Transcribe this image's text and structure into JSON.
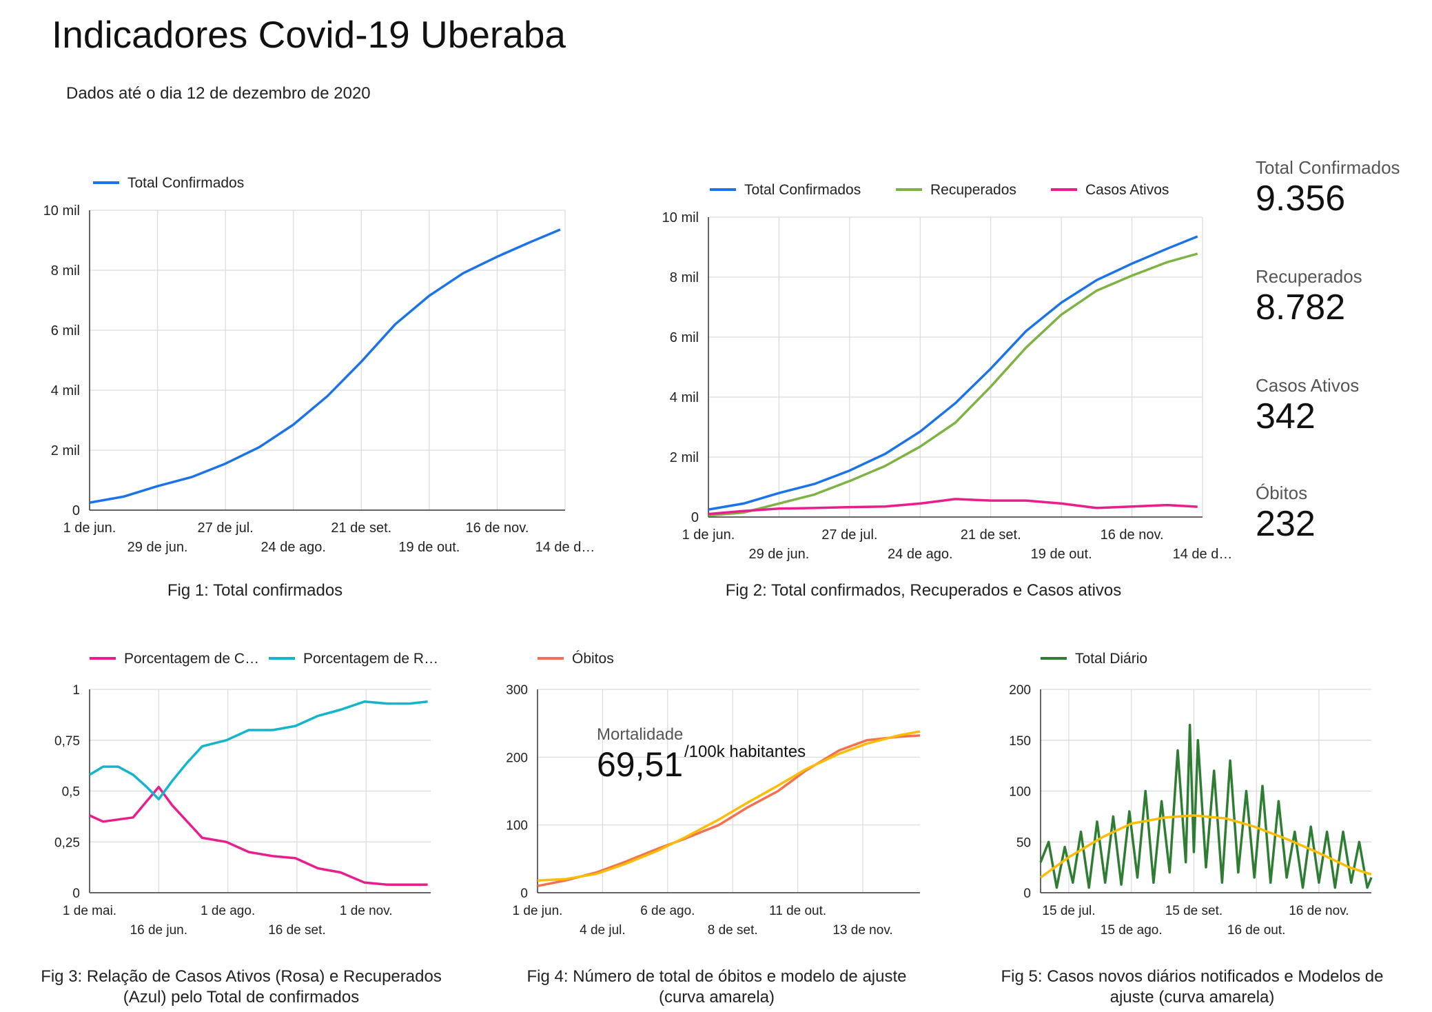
{
  "page": {
    "title": "Indicadores Covid-19 Uberaba",
    "subtitle": "Dados até o dia 12 de dezembro de 2020"
  },
  "kpis": [
    {
      "label": "Total Confirmados",
      "value": "9.356"
    },
    {
      "label": "Recuperados",
      "value": "8.782"
    },
    {
      "label": "Casos Ativos",
      "value": "342"
    },
    {
      "label": "Óbitos",
      "value": "232"
    }
  ],
  "captions": {
    "fig1": "Fig 1: Total confirmados",
    "fig2": "Fig 2:  Total confirmados, Recuperados e Casos ativos",
    "fig3": "Fig 3:  Relação de Casos Ativos (Rosa) e Recuperados (Azul)  pelo Total de confirmados",
    "fig4": "Fig 4:  Número de total de óbitos e modelo de ajuste (curva amarela)",
    "fig5": "Fig 5:  Casos novos diários notificados e Modelos de ajuste (curva amarela)"
  },
  "annotation": {
    "label": "Mortalidade",
    "value": "69,51",
    "unit": "/100k habitantes"
  },
  "colors": {
    "confirmados": "#1a73e8",
    "recuperados": "#7cb342",
    "ativos": "#e91e8c",
    "pct_ativos": "#e91e8c",
    "pct_recuperados": "#12b5cb",
    "obitos": "#f4704e",
    "ajuste": "#fbbc04",
    "diario": "#2e7d32",
    "grid": "#cccccc",
    "axis": "#333333"
  },
  "chart_data": [
    {
      "id": "fig1",
      "type": "line",
      "x_start": "2020-06-01",
      "x_end": "2020-12-12",
      "xlim": [
        "2020-06-01",
        "2020-12-14"
      ],
      "ylim": [
        0,
        10000
      ],
      "yticks": [
        0,
        2000,
        4000,
        6000,
        8000,
        10000
      ],
      "ytick_labels": [
        "0",
        "2 mil",
        "4 mil",
        "6 mil",
        "8 mil",
        "10 mil"
      ],
      "xticks": [
        "2020-06-01",
        "2020-06-29",
        "2020-07-27",
        "2020-08-24",
        "2020-09-21",
        "2020-10-19",
        "2020-11-16",
        "2020-12-14"
      ],
      "xtick_labels": [
        "1 de jun.",
        "29 de jun.",
        "27 de jul.",
        "24 de ago.",
        "21 de set.",
        "19 de out.",
        "16 de nov.",
        "14 de d…"
      ],
      "grid": true,
      "legend": "top-left",
      "series": [
        {
          "name": "Total Confirmados",
          "color": "#1a73e8",
          "x": [
            "2020-06-01",
            "2020-06-15",
            "2020-06-29",
            "2020-07-13",
            "2020-07-27",
            "2020-08-10",
            "2020-08-24",
            "2020-09-07",
            "2020-09-21",
            "2020-10-05",
            "2020-10-19",
            "2020-11-02",
            "2020-11-16",
            "2020-11-30",
            "2020-12-12"
          ],
          "y": [
            250,
            450,
            800,
            1100,
            1550,
            2100,
            2850,
            3800,
            4950,
            6200,
            7150,
            7900,
            8450,
            8950,
            9356
          ]
        }
      ]
    },
    {
      "id": "fig2",
      "type": "line",
      "x_start": "2020-06-01",
      "x_end": "2020-12-12",
      "xlim": [
        "2020-06-01",
        "2020-12-14"
      ],
      "ylim": [
        0,
        10000
      ],
      "yticks": [
        0,
        2000,
        4000,
        6000,
        8000,
        10000
      ],
      "ytick_labels": [
        "0",
        "2 mil",
        "4 mil",
        "6 mil",
        "8 mil",
        "10 mil"
      ],
      "xticks": [
        "2020-06-01",
        "2020-06-29",
        "2020-07-27",
        "2020-08-24",
        "2020-09-21",
        "2020-10-19",
        "2020-11-16",
        "2020-12-14"
      ],
      "xtick_labels": [
        "1 de jun.",
        "29 de jun.",
        "27 de jul.",
        "24 de ago.",
        "21 de set.",
        "19 de out.",
        "16 de nov.",
        "14 de d…"
      ],
      "grid": true,
      "legend": "top",
      "series": [
        {
          "name": "Total Confirmados",
          "color": "#1a73e8",
          "x": [
            "2020-06-01",
            "2020-06-15",
            "2020-06-29",
            "2020-07-13",
            "2020-07-27",
            "2020-08-10",
            "2020-08-24",
            "2020-09-07",
            "2020-09-21",
            "2020-10-05",
            "2020-10-19",
            "2020-11-02",
            "2020-11-16",
            "2020-11-30",
            "2020-12-12"
          ],
          "y": [
            250,
            450,
            800,
            1100,
            1550,
            2100,
            2850,
            3800,
            4950,
            6200,
            7150,
            7900,
            8450,
            8950,
            9356
          ]
        },
        {
          "name": "Recuperados",
          "color": "#7cb342",
          "x": [
            "2020-06-01",
            "2020-06-15",
            "2020-06-29",
            "2020-07-13",
            "2020-07-27",
            "2020-08-10",
            "2020-08-24",
            "2020-09-07",
            "2020-09-21",
            "2020-10-05",
            "2020-10-19",
            "2020-11-02",
            "2020-11-16",
            "2020-11-30",
            "2020-12-12"
          ],
          "y": [
            50,
            150,
            450,
            750,
            1200,
            1700,
            2350,
            3150,
            4350,
            5650,
            6750,
            7550,
            8050,
            8500,
            8782
          ]
        },
        {
          "name": "Casos Ativos",
          "color": "#e91e8c",
          "x": [
            "2020-06-01",
            "2020-06-15",
            "2020-06-29",
            "2020-07-13",
            "2020-07-27",
            "2020-08-10",
            "2020-08-24",
            "2020-09-07",
            "2020-09-21",
            "2020-10-05",
            "2020-10-19",
            "2020-11-02",
            "2020-11-16",
            "2020-11-30",
            "2020-12-12"
          ],
          "y": [
            100,
            200,
            280,
            300,
            330,
            350,
            450,
            600,
            550,
            550,
            450,
            300,
            350,
            400,
            342
          ]
        }
      ]
    },
    {
      "id": "fig3",
      "type": "line",
      "x_start": "2020-05-01",
      "x_end": "2020-12-12",
      "xlim": [
        "2020-05-01",
        "2020-12-14"
      ],
      "ylim": [
        0,
        1
      ],
      "yticks": [
        0,
        0.25,
        0.5,
        0.75,
        1
      ],
      "ytick_labels": [
        "0",
        "0,25",
        "0,5",
        "0,75",
        "1"
      ],
      "xticks": [
        "2020-05-01",
        "2020-06-16",
        "2020-08-01",
        "2020-09-16",
        "2020-11-01"
      ],
      "xtick_labels": [
        "1 de mai.",
        "16 de jun.",
        "1 de ago.",
        "16 de set.",
        "1 de nov."
      ],
      "grid": true,
      "legend": "top",
      "series": [
        {
          "name": "Porcentagem de C…",
          "color": "#e91e8c",
          "x": [
            "2020-05-01",
            "2020-05-10",
            "2020-05-20",
            "2020-05-30",
            "2020-06-08",
            "2020-06-16",
            "2020-06-25",
            "2020-07-05",
            "2020-07-15",
            "2020-07-31",
            "2020-08-15",
            "2020-08-31",
            "2020-09-15",
            "2020-09-30",
            "2020-10-15",
            "2020-10-31",
            "2020-11-15",
            "2020-11-30",
            "2020-12-12"
          ],
          "y": [
            0.38,
            0.35,
            0.36,
            0.37,
            0.45,
            0.52,
            0.43,
            0.35,
            0.27,
            0.25,
            0.2,
            0.18,
            0.17,
            0.12,
            0.1,
            0.05,
            0.04,
            0.04,
            0.04
          ]
        },
        {
          "name": "Porcentagem de R…",
          "color": "#12b5cb",
          "x": [
            "2020-05-01",
            "2020-05-10",
            "2020-05-20",
            "2020-05-30",
            "2020-06-08",
            "2020-06-16",
            "2020-06-25",
            "2020-07-05",
            "2020-07-15",
            "2020-07-31",
            "2020-08-15",
            "2020-08-31",
            "2020-09-15",
            "2020-09-30",
            "2020-10-15",
            "2020-10-31",
            "2020-11-15",
            "2020-11-30",
            "2020-12-12"
          ],
          "y": [
            0.58,
            0.62,
            0.62,
            0.58,
            0.52,
            0.46,
            0.55,
            0.64,
            0.72,
            0.75,
            0.8,
            0.8,
            0.82,
            0.87,
            0.9,
            0.94,
            0.93,
            0.93,
            0.94
          ]
        }
      ]
    },
    {
      "id": "fig4",
      "type": "line",
      "x_start": "2020-06-01",
      "x_end": "2020-12-12",
      "xlim": [
        "2020-06-01",
        "2020-12-12"
      ],
      "ylim": [
        0,
        300
      ],
      "yticks": [
        0,
        100,
        200,
        300
      ],
      "ytick_labels": [
        "0",
        "100",
        "200",
        "300"
      ],
      "xticks": [
        "2020-06-01",
        "2020-07-04",
        "2020-08-06",
        "2020-09-08",
        "2020-10-11",
        "2020-11-13"
      ],
      "xtick_labels": [
        "1 de jun.",
        "4 de jul.",
        "6 de ago.",
        "8 de set.",
        "11 de out.",
        "13 de nov."
      ],
      "grid": true,
      "legend": "top-left",
      "series": [
        {
          "name": "Óbitos",
          "color": "#f4704e",
          "x": [
            "2020-06-01",
            "2020-06-15",
            "2020-07-01",
            "2020-07-15",
            "2020-08-01",
            "2020-08-15",
            "2020-09-01",
            "2020-09-15",
            "2020-10-01",
            "2020-10-15",
            "2020-11-01",
            "2020-11-15",
            "2020-12-01",
            "2020-12-12"
          ],
          "y": [
            10,
            18,
            30,
            45,
            65,
            80,
            100,
            125,
            150,
            180,
            210,
            225,
            230,
            232
          ]
        },
        {
          "name": "",
          "color": "#fbbc04",
          "x": [
            "2020-06-01",
            "2020-06-15",
            "2020-07-01",
            "2020-07-15",
            "2020-08-01",
            "2020-08-15",
            "2020-09-01",
            "2020-09-15",
            "2020-10-01",
            "2020-10-15",
            "2020-11-01",
            "2020-11-15",
            "2020-12-01",
            "2020-12-12"
          ],
          "y": [
            18,
            20,
            28,
            42,
            62,
            82,
            108,
            132,
            158,
            182,
            205,
            220,
            232,
            238
          ]
        }
      ]
    },
    {
      "id": "fig5",
      "type": "line",
      "x_start": "2020-07-01",
      "x_end": "2020-12-12",
      "xlim": [
        "2020-07-01",
        "2020-12-12"
      ],
      "ylim": [
        0,
        200
      ],
      "yticks": [
        0,
        50,
        100,
        150,
        200
      ],
      "ytick_labels": [
        "0",
        "50",
        "100",
        "150",
        "200"
      ],
      "xticks": [
        "2020-07-15",
        "2020-08-15",
        "2020-09-15",
        "2020-10-16",
        "2020-11-16"
      ],
      "xtick_labels": [
        "15 de jul.",
        "15 de ago.",
        "15 de set.",
        "16 de out.",
        "16 de nov."
      ],
      "grid": true,
      "legend": "top-left",
      "series": [
        {
          "name": "Total Diário",
          "color": "#2e7d32",
          "x": [
            "2020-07-01",
            "2020-07-05",
            "2020-07-09",
            "2020-07-13",
            "2020-07-17",
            "2020-07-21",
            "2020-07-25",
            "2020-07-29",
            "2020-08-02",
            "2020-08-06",
            "2020-08-10",
            "2020-08-14",
            "2020-08-18",
            "2020-08-22",
            "2020-08-26",
            "2020-08-30",
            "2020-09-03",
            "2020-09-07",
            "2020-09-11",
            "2020-09-13",
            "2020-09-15",
            "2020-09-17",
            "2020-09-21",
            "2020-09-25",
            "2020-09-29",
            "2020-10-03",
            "2020-10-07",
            "2020-10-11",
            "2020-10-15",
            "2020-10-19",
            "2020-10-23",
            "2020-10-27",
            "2020-10-31",
            "2020-11-04",
            "2020-11-08",
            "2020-11-12",
            "2020-11-16",
            "2020-11-20",
            "2020-11-24",
            "2020-11-28",
            "2020-12-02",
            "2020-12-06",
            "2020-12-10",
            "2020-12-12"
          ],
          "y": [
            30,
            50,
            5,
            45,
            10,
            60,
            5,
            70,
            10,
            75,
            8,
            80,
            15,
            100,
            10,
            90,
            20,
            140,
            30,
            165,
            40,
            150,
            25,
            120,
            10,
            130,
            20,
            100,
            15,
            105,
            10,
            90,
            15,
            60,
            5,
            65,
            10,
            60,
            5,
            60,
            10,
            50,
            5,
            15
          ]
        },
        {
          "name": "",
          "color": "#fbbc04",
          "x": [
            "2020-07-01",
            "2020-07-15",
            "2020-08-01",
            "2020-08-15",
            "2020-09-01",
            "2020-09-15",
            "2020-10-01",
            "2020-10-15",
            "2020-11-01",
            "2020-11-15",
            "2020-12-01",
            "2020-12-12"
          ],
          "y": [
            15,
            35,
            55,
            68,
            74,
            76,
            73,
            65,
            52,
            40,
            25,
            18
          ]
        }
      ]
    }
  ]
}
